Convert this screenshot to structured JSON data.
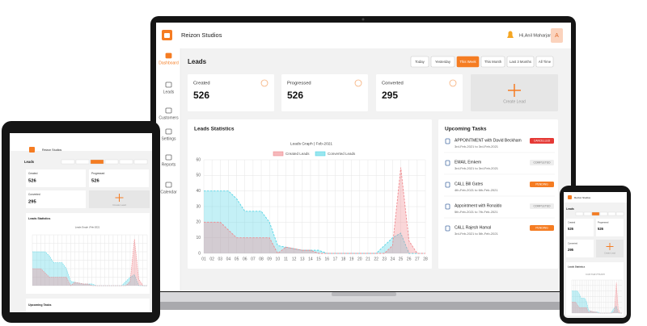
{
  "app": {
    "name": "Reizon Studios",
    "user": "Hi,Anil Maharjan",
    "avatar": "A"
  },
  "sidebar": [
    "Dashboard",
    "Leads",
    "Customers",
    "Settings",
    "Reports",
    "Calendar"
  ],
  "page_title": "Leads",
  "filters": [
    "Today",
    "Yesterday",
    "This Week",
    "This Month",
    "Last 3 Months",
    "All Time"
  ],
  "active_filter": 2,
  "stats": [
    {
      "label": "Created",
      "value": 526
    },
    {
      "label": "Progressed",
      "value": 526
    },
    {
      "label": "Converted",
      "value": 295
    }
  ],
  "create_lead": "Create Lead",
  "chart_data": {
    "type": "line",
    "title": "Leads Statistics",
    "subtitle": "Leads Graph | Feb-2021",
    "categories": [
      "01",
      "02",
      "03",
      "04",
      "05",
      "06",
      "07",
      "08",
      "09",
      "10",
      "11",
      "12",
      "13",
      "14",
      "15",
      "16",
      "17",
      "18",
      "19",
      "20",
      "21",
      "22",
      "23",
      "24",
      "25",
      "26",
      "27",
      "28"
    ],
    "series": [
      {
        "name": "Created Leads",
        "color": "#f08a8f",
        "values": [
          20,
          20,
          20,
          15,
          10,
          10,
          10,
          10,
          10,
          0,
          4,
          3,
          2,
          2,
          0,
          0,
          0,
          0,
          0,
          0,
          0,
          0,
          0,
          5,
          55,
          8,
          0,
          0
        ]
      },
      {
        "name": "Converted Leads",
        "color": "#55d5e5",
        "values": [
          40,
          40,
          40,
          40,
          35,
          27,
          27,
          27,
          20,
          5,
          4,
          3,
          2,
          2,
          2,
          0,
          0,
          0,
          0,
          0,
          0,
          0,
          5,
          10,
          13,
          0,
          0,
          0
        ]
      }
    ],
    "ylim": [
      0,
      60
    ],
    "yticks": [
      0,
      10,
      20,
      30,
      40,
      50,
      60
    ],
    "grid": true
  },
  "tasks": {
    "title": "Upcoming Tasks",
    "items": [
      {
        "title": "APPOINTMENT with David Beckham",
        "date": "3rd-Feb-2021 to 3rd-Feb-2021",
        "status": "CANCELLED"
      },
      {
        "title": "EMAIL Emkem",
        "date": "3rd-Feb-2021 to 3rd-Feb-2021",
        "status": "COMPLETED"
      },
      {
        "title": "CALL Bill Gates",
        "date": "4th-Feb-2021 to 6th-Feb-2021",
        "status": "PENDING"
      },
      {
        "title": "Appointment with Ronaldo",
        "date": "5th-Feb-2021 to 7th-Feb-2021",
        "status": "COMPLETED"
      },
      {
        "title": "CALL Rajesh Hamal",
        "date": "3rd-Feb-2021 to 5th-Feb-2021",
        "status": "PENDING"
      }
    ]
  }
}
